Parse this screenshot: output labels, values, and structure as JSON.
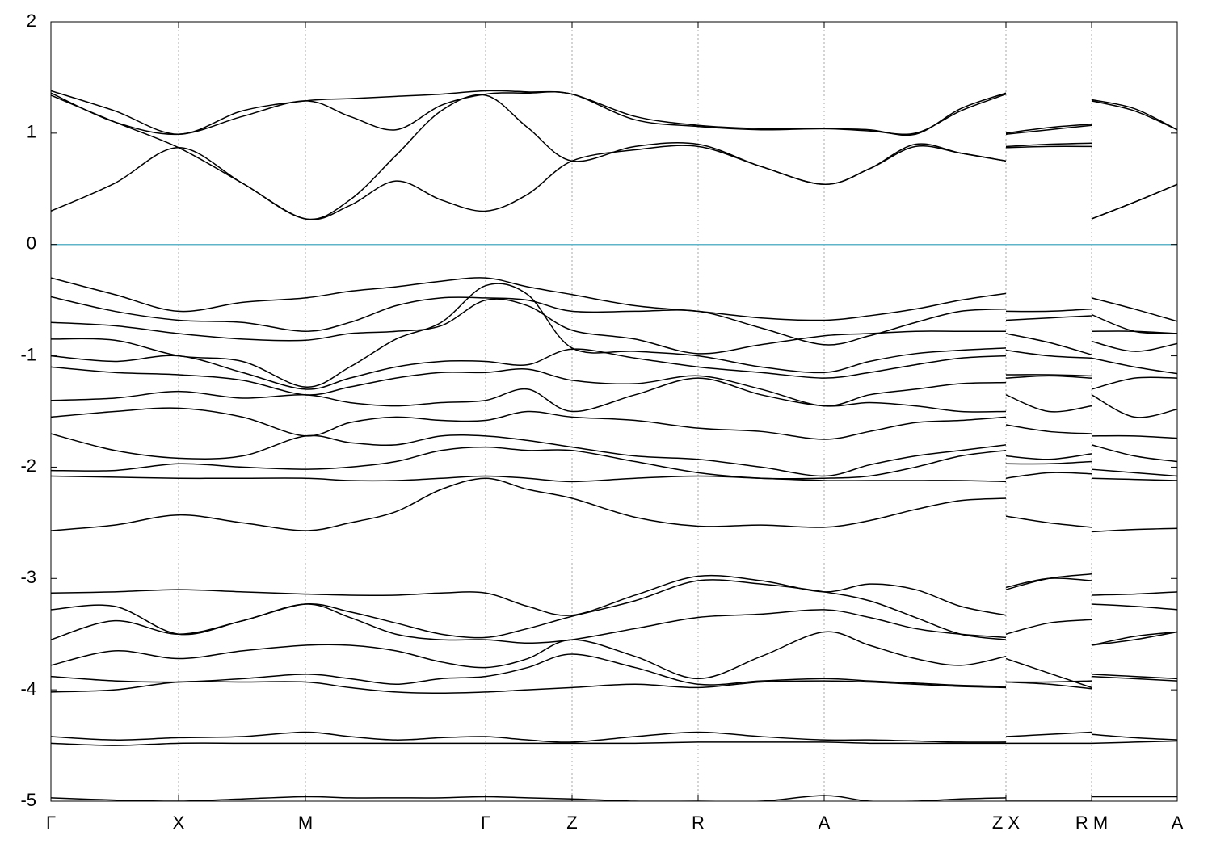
{
  "chart_data": {
    "type": "line",
    "color": "#000000",
    "grid": true,
    "zero_line_color": "#5fb4c9",
    "xlim": [
      0,
      13.94
    ],
    "xticks": [
      {
        "value": 0,
        "label": "Γ"
      },
      {
        "value": 1.58,
        "label": "X"
      },
      {
        "value": 3.15,
        "label": "M"
      },
      {
        "value": 5.38,
        "label": "Γ"
      },
      {
        "value": 6.45,
        "label": "Z"
      },
      {
        "value": 8.01,
        "label": "R"
      },
      {
        "value": 9.57,
        "label": "A"
      },
      {
        "value": 11.82,
        "label": "Z X"
      },
      {
        "value": 12.88,
        "label": "R M"
      },
      {
        "value": 13.94,
        "label": "A"
      }
    ],
    "ylim": [
      -5,
      2
    ],
    "yticks": [
      2,
      1,
      0,
      -1,
      -2,
      -3,
      -4,
      -5
    ],
    "x": [
      0,
      0.79,
      1.58,
      2.37,
      3.15,
      3.7,
      4.27,
      4.83,
      5.38,
      5.9,
      6.45,
      7.23,
      8.01,
      8.79,
      9.57,
      10.13,
      10.7,
      11.26,
      11.82,
      11.82,
      11.82,
      12.35,
      12.88,
      12.88,
      12.88,
      13.41,
      13.94
    ],
    "series": [
      {
        "values": [
          0.3,
          0.55,
          0.87,
          0.55,
          0.23,
          0.35,
          0.57,
          0.4,
          0.3,
          0.45,
          0.75,
          0.85,
          0.88,
          0.7,
          0.54,
          0.68,
          0.88,
          0.82,
          0.75,
          null,
          0.87,
          0.88,
          0.88,
          null,
          0.23,
          0.38,
          0.54
        ]
      },
      {
        "values": [
          1.34,
          1.1,
          0.87,
          0.55,
          0.23,
          0.4,
          0.8,
          1.2,
          1.34,
          1.05,
          0.75,
          0.88,
          0.9,
          0.7,
          0.54,
          0.68,
          0.9,
          0.82,
          0.75,
          null,
          0.88,
          0.9,
          0.91,
          null,
          0.23,
          0.38,
          0.54
        ]
      },
      {
        "values": [
          1.36,
          1.1,
          0.99,
          1.15,
          1.29,
          1.15,
          1.03,
          1.25,
          1.35,
          1.36,
          1.35,
          1.12,
          1.06,
          1.03,
          1.04,
          1.02,
          1.0,
          1.2,
          1.35,
          null,
          0.99,
          1.03,
          1.07,
          null,
          1.29,
          1.2,
          1.03
        ]
      },
      {
        "values": [
          1.38,
          1.2,
          0.99,
          1.2,
          1.29,
          1.31,
          1.33,
          1.35,
          1.38,
          1.37,
          1.35,
          1.15,
          1.07,
          1.04,
          1.04,
          1.03,
          0.99,
          1.22,
          1.36,
          null,
          1.0,
          1.05,
          1.08,
          null,
          1.3,
          1.22,
          1.03
        ]
      },
      {
        "values": [
          -0.3,
          -0.45,
          -0.6,
          -0.52,
          -0.48,
          -0.42,
          -0.38,
          -0.33,
          -0.3,
          -0.38,
          -0.45,
          -0.55,
          -0.6,
          -0.66,
          -0.68,
          -0.64,
          -0.58,
          -0.5,
          -0.44,
          null,
          -0.6,
          -0.6,
          -0.58,
          null,
          -0.48,
          -0.58,
          -0.69
        ]
      },
      {
        "values": [
          -0.47,
          -0.6,
          -0.68,
          -0.7,
          -0.78,
          -0.7,
          -0.55,
          -0.48,
          -0.48,
          -0.5,
          -0.6,
          -0.6,
          -0.6,
          -0.75,
          -0.9,
          -0.82,
          -0.7,
          -0.6,
          -0.58,
          null,
          -0.68,
          -0.66,
          -0.64,
          null,
          -0.63,
          -0.78,
          -0.8
        ]
      },
      {
        "values": [
          -0.7,
          -0.73,
          -0.8,
          -0.85,
          -0.86,
          -0.8,
          -0.78,
          -0.73,
          -0.5,
          -0.55,
          -0.77,
          -0.85,
          -0.98,
          -0.9,
          -0.82,
          -0.8,
          -0.78,
          -0.78,
          -0.78,
          null,
          -0.8,
          -0.88,
          -0.99,
          null,
          -0.78,
          -0.78,
          -0.8
        ]
      },
      {
        "values": [
          -0.85,
          -0.86,
          -1.0,
          -1.05,
          -1.28,
          -1.1,
          -0.85,
          -0.7,
          -0.37,
          -0.45,
          -0.93,
          -0.96,
          -1.0,
          -1.1,
          -1.15,
          -1.05,
          -0.98,
          -0.95,
          -0.93,
          null,
          -0.95,
          -1.0,
          -1.02,
          null,
          -0.87,
          -0.96,
          -0.89
        ]
      },
      {
        "values": [
          -1.0,
          -1.05,
          -1.0,
          -1.15,
          -1.3,
          -1.2,
          -1.1,
          -1.05,
          -1.05,
          -1.08,
          -0.94,
          -1.02,
          -1.1,
          -1.15,
          -1.2,
          -1.15,
          -1.08,
          -1.02,
          -1.0,
          null,
          -1.17,
          -1.17,
          -1.18,
          null,
          -1.02,
          -1.1,
          -1.16
        ]
      },
      {
        "values": [
          -1.1,
          -1.15,
          -1.17,
          -1.22,
          -1.35,
          -1.28,
          -1.2,
          -1.15,
          -1.15,
          -1.12,
          -1.22,
          -1.25,
          -1.18,
          -1.3,
          -1.45,
          -1.35,
          -1.3,
          -1.25,
          -1.24,
          null,
          -1.2,
          -1.18,
          -1.2,
          null,
          -1.3,
          -1.2,
          -1.2
        ]
      },
      {
        "values": [
          -1.4,
          -1.38,
          -1.32,
          -1.38,
          -1.35,
          -1.42,
          -1.45,
          -1.42,
          -1.4,
          -1.3,
          -1.5,
          -1.35,
          -1.2,
          -1.35,
          -1.45,
          -1.42,
          -1.45,
          -1.5,
          -1.5,
          null,
          -1.35,
          -1.5,
          -1.45,
          null,
          -1.35,
          -1.55,
          -1.48
        ]
      },
      {
        "values": [
          -1.55,
          -1.5,
          -1.47,
          -1.55,
          -1.72,
          -1.6,
          -1.55,
          -1.58,
          -1.58,
          -1.5,
          -1.55,
          -1.58,
          -1.65,
          -1.68,
          -1.75,
          -1.68,
          -1.6,
          -1.58,
          -1.55,
          null,
          -1.62,
          -1.68,
          -1.7,
          null,
          -1.72,
          -1.72,
          -1.74
        ]
      },
      {
        "values": [
          -1.7,
          -1.85,
          -1.92,
          -1.9,
          -1.72,
          -1.78,
          -1.8,
          -1.72,
          -1.72,
          -1.76,
          -1.82,
          -1.9,
          -1.93,
          -2.0,
          -2.08,
          -1.98,
          -1.9,
          -1.85,
          -1.8,
          null,
          -1.9,
          -1.93,
          -1.88,
          null,
          -1.8,
          -1.9,
          -1.95
        ]
      },
      {
        "values": [
          -2.03,
          -2.03,
          -1.97,
          -2.0,
          -2.02,
          -2.0,
          -1.95,
          -1.85,
          -1.82,
          -1.85,
          -1.85,
          -1.95,
          -2.05,
          -2.1,
          -2.1,
          -2.08,
          -2.0,
          -1.9,
          -1.85,
          null,
          -1.97,
          -1.97,
          -1.95,
          null,
          -2.02,
          -2.05,
          -2.08
        ]
      },
      {
        "values": [
          -2.08,
          -2.09,
          -2.1,
          -2.1,
          -2.1,
          -2.12,
          -2.12,
          -2.1,
          -2.08,
          -2.1,
          -2.13,
          -2.1,
          -2.08,
          -2.1,
          -2.12,
          -2.12,
          -2.12,
          -2.12,
          -2.13,
          null,
          -2.1,
          -2.05,
          -2.06,
          null,
          -2.1,
          -2.11,
          -2.12
        ]
      },
      {
        "values": [
          -2.57,
          -2.52,
          -2.43,
          -2.5,
          -2.57,
          -2.5,
          -2.4,
          -2.2,
          -2.1,
          -2.2,
          -2.28,
          -2.45,
          -2.53,
          -2.52,
          -2.54,
          -2.48,
          -2.38,
          -2.3,
          -2.28,
          null,
          -2.44,
          -2.5,
          -2.54,
          null,
          -2.58,
          -2.56,
          -2.55
        ]
      },
      {
        "values": [
          -3.13,
          -3.12,
          -3.1,
          -3.12,
          -3.14,
          -3.15,
          -3.15,
          -3.13,
          -3.13,
          -3.25,
          -3.33,
          -3.15,
          -2.98,
          -3.02,
          -3.12,
          -3.05,
          -3.1,
          -3.25,
          -3.33,
          null,
          -3.1,
          -3.0,
          -2.96,
          null,
          -3.15,
          -3.14,
          -3.12
        ]
      },
      {
        "values": [
          -3.28,
          -3.25,
          -3.5,
          -3.38,
          -3.23,
          -3.3,
          -3.4,
          -3.5,
          -3.53,
          -3.45,
          -3.34,
          -3.2,
          -3.02,
          -3.05,
          -3.12,
          -3.2,
          -3.35,
          -3.5,
          -3.55,
          null,
          -3.08,
          -3.0,
          -3.02,
          null,
          -3.23,
          -3.25,
          -3.28
        ]
      },
      {
        "values": [
          -3.55,
          -3.38,
          -3.5,
          -3.38,
          -3.23,
          -3.35,
          -3.5,
          -3.55,
          -3.55,
          -3.58,
          -3.55,
          -3.45,
          -3.35,
          -3.32,
          -3.28,
          -3.35,
          -3.45,
          -3.5,
          -3.53,
          null,
          -3.5,
          -3.4,
          -3.37,
          null,
          -3.6,
          -3.52,
          -3.48
        ]
      },
      {
        "values": [
          -3.78,
          -3.65,
          -3.72,
          -3.65,
          -3.6,
          -3.6,
          -3.65,
          -3.75,
          -3.8,
          -3.72,
          -3.55,
          -3.7,
          -3.9,
          -3.7,
          -3.48,
          -3.6,
          -3.72,
          -3.78,
          -3.7,
          null,
          -3.72,
          -3.85,
          -3.98,
          null,
          -3.6,
          -3.55,
          -3.48
        ]
      },
      {
        "values": [
          -3.88,
          -3.92,
          -3.93,
          -3.9,
          -3.86,
          -3.9,
          -3.95,
          -3.9,
          -3.88,
          -3.8,
          -3.68,
          -3.8,
          -3.95,
          -3.92,
          -3.9,
          -3.92,
          -3.94,
          -3.96,
          -3.97,
          null,
          -3.93,
          -3.93,
          -3.92,
          null,
          -3.86,
          -3.88,
          -3.9
        ]
      },
      {
        "values": [
          -4.02,
          -4.0,
          -3.93,
          -3.93,
          -3.93,
          -3.98,
          -4.02,
          -4.03,
          -4.02,
          -4.0,
          -3.98,
          -3.95,
          -3.98,
          -3.93,
          -3.92,
          -3.93,
          -3.95,
          -3.97,
          -3.98,
          null,
          -3.93,
          -3.95,
          -3.99,
          null,
          -3.88,
          -3.9,
          -3.92
        ]
      },
      {
        "values": [
          -4.42,
          -4.45,
          -4.43,
          -4.42,
          -4.38,
          -4.42,
          -4.45,
          -4.43,
          -4.42,
          -4.45,
          -4.47,
          -4.42,
          -4.38,
          -4.42,
          -4.45,
          -4.45,
          -4.46,
          -4.47,
          -4.47,
          null,
          -4.42,
          -4.4,
          -4.38,
          null,
          -4.4,
          -4.43,
          -4.45
        ]
      },
      {
        "values": [
          -4.48,
          -4.5,
          -4.48,
          -4.48,
          -4.48,
          -4.48,
          -4.48,
          -4.48,
          -4.48,
          -4.48,
          -4.48,
          -4.48,
          -4.47,
          -4.47,
          -4.47,
          -4.48,
          -4.48,
          -4.48,
          -4.48,
          null,
          -4.48,
          -4.48,
          -4.48,
          null,
          -4.48,
          -4.47,
          -4.46
        ]
      },
      {
        "values": [
          -4.97,
          -4.99,
          -5.0,
          -4.98,
          -4.96,
          -4.97,
          -4.97,
          -4.97,
          -4.96,
          -4.97,
          -4.98,
          -5.0,
          -5.0,
          -5.0,
          -4.95,
          -5.0,
          -5.0,
          -4.98,
          -4.97,
          null,
          -5.0,
          -5.0,
          -5.0,
          null,
          -4.96,
          -4.96,
          -4.96
        ]
      }
    ]
  }
}
